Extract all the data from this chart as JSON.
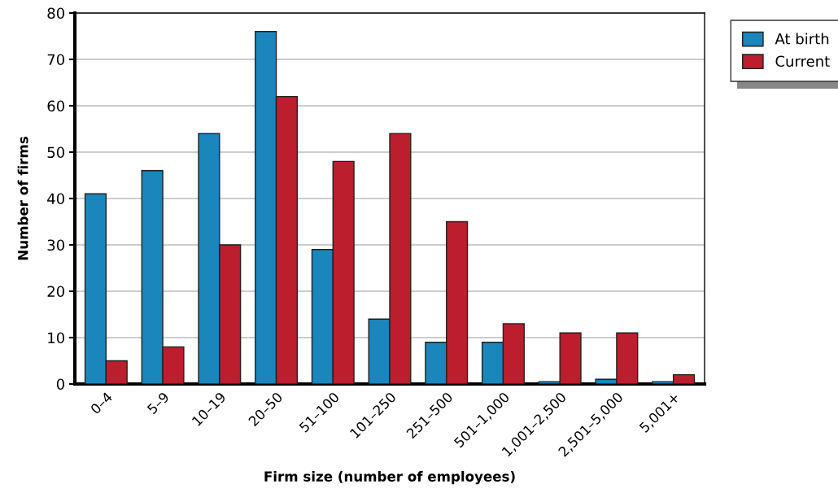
{
  "chart_data": {
    "type": "bar",
    "xlabel": "Firm size (number of employees)",
    "ylabel": "Number of firms",
    "categories": [
      "0–4",
      "5–9",
      "10–19",
      "20–50",
      "51–100",
      "101–250",
      "251–500",
      "501–1,000",
      "1,001–2,500",
      "2,501–5,000",
      "5,001+"
    ],
    "series": [
      {
        "name": "At birth",
        "color": "#1a86bb",
        "values": [
          41,
          46,
          54,
          76,
          29,
          14,
          9,
          9,
          0.5,
          1,
          0.5
        ]
      },
      {
        "name": "Current",
        "color": "#bc1e2d",
        "values": [
          5,
          8,
          30,
          62,
          48,
          54,
          35,
          13,
          11,
          11,
          2
        ]
      }
    ],
    "ylim": [
      0,
      80
    ],
    "yticks": [
      0,
      10,
      20,
      30,
      40,
      50,
      60,
      70,
      80
    ],
    "grid": "y",
    "legend": "top right"
  }
}
